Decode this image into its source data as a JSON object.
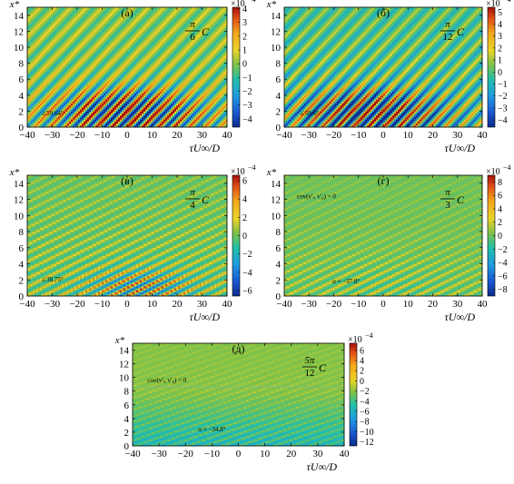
{
  "chart_data": [
    {
      "type": "heatmap",
      "panel_label": "(а)",
      "angle_label": {
        "num": "π",
        "den": "6",
        "suffix": "C"
      },
      "xlabel": "τU∞/D",
      "ylabel": "x*",
      "xlim": [
        -40,
        40
      ],
      "ylim": [
        0,
        15
      ],
      "xticks": [
        -40,
        -30,
        -20,
        -10,
        0,
        10,
        20,
        30,
        40
      ],
      "yticks": [
        0,
        2,
        4,
        6,
        8,
        10,
        12,
        14
      ],
      "colorbar": {
        "exponent": "×10",
        "power": "−4",
        "min": -4.6,
        "max": 4.1,
        "ticks": [
          -4,
          -3,
          -2,
          -1,
          0,
          1,
          2,
          3,
          4
        ]
      },
      "annotations": [
        {
          "text": "∠59.64°",
          "x": -30,
          "y": 1.5
        }
      ],
      "pattern": {
        "angle_deg": 59.64,
        "period": 6.2,
        "ridge_amplitude": 0.55,
        "trough_amplitude": 0.55,
        "decay_height": 18,
        "center_x": 0,
        "center_y": 1.8,
        "core_sigma_x": 28,
        "core_sigma_y": 3,
        "core_strength": 0.85
      }
    },
    {
      "type": "heatmap",
      "panel_label": "(б)",
      "angle_label": {
        "num": "π",
        "den": "12",
        "suffix": "C"
      },
      "xlabel": "τU∞/D",
      "ylabel": "x*",
      "xlim": [
        -40,
        40
      ],
      "ylim": [
        0,
        15
      ],
      "xticks": [
        -40,
        -30,
        -20,
        -10,
        0,
        10,
        20,
        30,
        40
      ],
      "yticks": [
        0,
        2,
        4,
        6,
        8,
        10,
        12,
        14
      ],
      "colorbar": {
        "exponent": "×10",
        "power": "−4",
        "min": -4.6,
        "max": 5.4,
        "ticks": [
          -4,
          -3,
          -2,
          -1,
          0,
          1,
          2,
          3,
          4,
          5
        ]
      },
      "annotations": [
        {
          "text": "∠59.6°",
          "x": -30,
          "y": 1.5
        }
      ],
      "pattern": {
        "angle_deg": 59.6,
        "period": 6.2,
        "ridge_amplitude": 0.6,
        "trough_amplitude": 0.6,
        "decay_height": 18,
        "center_x": -5,
        "center_y": 1.8,
        "core_sigma_x": 28,
        "core_sigma_y": 3,
        "core_strength": 0.85
      }
    },
    {
      "type": "heatmap",
      "panel_label": "(в)",
      "angle_label": {
        "num": "π",
        "den": "4",
        "suffix": "C"
      },
      "xlabel": "τU∞/D",
      "ylabel": "x*",
      "xlim": [
        -40,
        40
      ],
      "ylim": [
        0,
        15
      ],
      "xticks": [
        -40,
        -30,
        -20,
        -10,
        0,
        10,
        20,
        30,
        40
      ],
      "yticks": [
        0,
        2,
        4,
        6,
        8,
        10,
        12,
        14
      ],
      "colorbar": {
        "exponent": "×10",
        "power": "−4",
        "min": -6.6,
        "max": 6.6,
        "ticks": [
          -6,
          -4,
          -2,
          0,
          2,
          4,
          6
        ]
      },
      "annotations": [
        {
          "text": "∠38.75°",
          "x": -30,
          "y": 1.8
        }
      ],
      "pattern": {
        "angle_deg": 38.75,
        "period": 6.8,
        "ridge_amplitude": 0.5,
        "trough_amplitude": 0.25,
        "decay_height": 14,
        "center_x": 5,
        "center_y": 1.2,
        "core_sigma_x": 24,
        "core_sigma_y": 2.5,
        "core_strength": 0.5
      }
    },
    {
      "type": "heatmap",
      "panel_label": "(г)",
      "angle_label": {
        "num": "π",
        "den": "3",
        "suffix": "C"
      },
      "xlabel": "τU∞/D",
      "ylabel": "x*",
      "xlim": [
        -40,
        40
      ],
      "ylim": [
        0,
        15
      ],
      "xticks": [
        -40,
        -30,
        -20,
        -10,
        0,
        10,
        20,
        30,
        40
      ],
      "yticks": [
        0,
        2,
        4,
        6,
        8,
        10,
        12,
        14
      ],
      "colorbar": {
        "exponent": "×10",
        "power": "−4",
        "min": -9,
        "max": 9,
        "ticks": [
          -8,
          -6,
          -4,
          -2,
          0,
          2,
          4,
          6,
          8
        ]
      },
      "annotations": [
        {
          "text": "cov(v′ᵢ, v′₀) = 0",
          "x": -27,
          "y": 12.1
        },
        {
          "text": "α ≈ −37.8°",
          "x": -15,
          "y": 1.6
        }
      ],
      "divider_y": 11.2,
      "pattern": {
        "angle_deg": 37.8,
        "period": 6.6,
        "ridge_amplitude": 0.35,
        "trough_amplitude": 0.1,
        "decay_height": 12,
        "center_x": 0,
        "center_y": 1,
        "core_sigma_x": 30,
        "core_sigma_y": 3,
        "core_strength": 0.15
      }
    },
    {
      "type": "heatmap",
      "panel_label": "(д)",
      "angle_label": {
        "num": "5π",
        "den": "12",
        "suffix": "C"
      },
      "xlabel": "τU∞/D",
      "ylabel": "x*",
      "xlim": [
        -40,
        40
      ],
      "ylim": [
        0,
        15
      ],
      "xticks": [
        -40,
        -30,
        -20,
        -10,
        0,
        10,
        20,
        30,
        40
      ],
      "yticks": [
        0,
        2,
        4,
        6,
        8,
        10,
        12,
        14
      ],
      "colorbar": {
        "exponent": "×10",
        "power": "−4",
        "min": -12.8,
        "max": 7.4,
        "ticks": [
          -12,
          -10,
          -8,
          -6,
          -4,
          -2,
          0,
          2,
          4,
          6
        ]
      },
      "annotations": [
        {
          "text": "cov(v′ᵢ, v′₀) = 0",
          "x": -27,
          "y": 9.3
        },
        {
          "text": "α ≈ −34.8°",
          "x": -10,
          "y": 2.1
        }
      ],
      "divider_y": 8.6,
      "pattern": {
        "angle_deg": 34.8,
        "period": 6.6,
        "ridge_amplitude": 0.22,
        "trough_amplitude": 0.05,
        "decay_height": 10,
        "center_x": 0,
        "center_y": 1,
        "core_sigma_x": 30,
        "core_sigma_y": 3,
        "core_strength": 0.05,
        "background": -0.42,
        "background_ramp": 0.25
      }
    }
  ]
}
